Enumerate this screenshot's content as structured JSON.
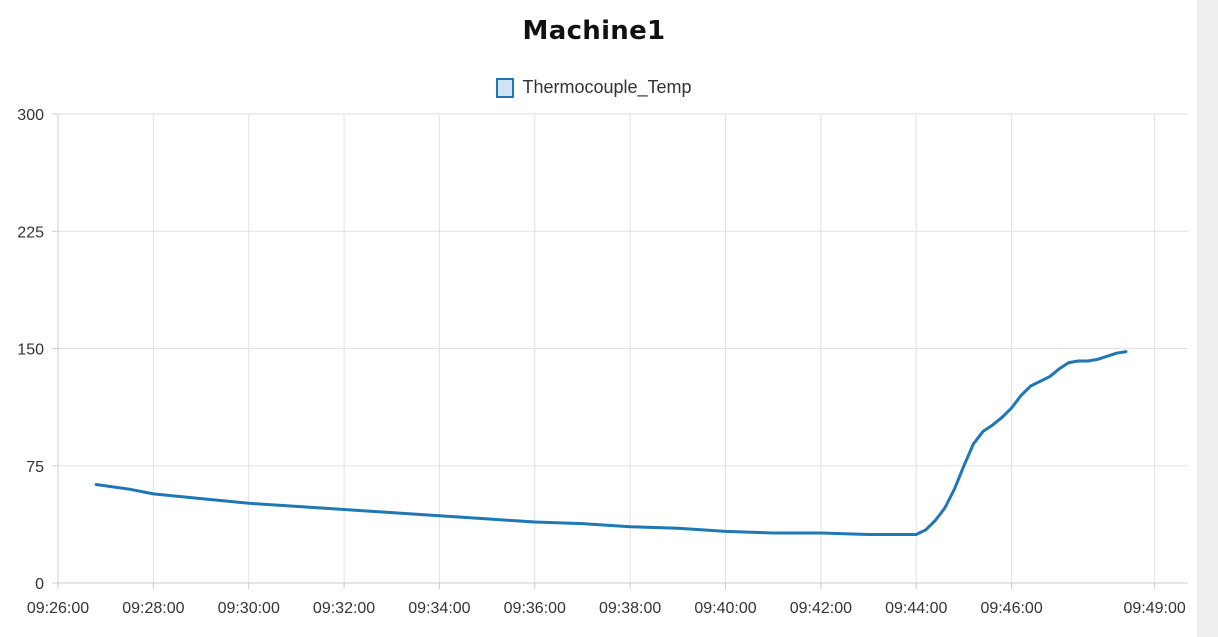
{
  "chart_data": {
    "type": "line",
    "title": "Machine1",
    "xlabel": "",
    "ylabel": "",
    "ylim": [
      0,
      300
    ],
    "yticks": [
      "0",
      "75",
      "150",
      "225",
      "300"
    ],
    "xticks": [
      "09:26:00",
      "09:28:00",
      "09:30:00",
      "09:32:00",
      "09:34:00",
      "09:36:00",
      "09:38:00",
      "09:40:00",
      "09:42:00",
      "09:44:00",
      "09:46:00",
      "09:49:00"
    ],
    "xtick_minutes": [
      566,
      568,
      570,
      572,
      574,
      576,
      578,
      580,
      582,
      584,
      586,
      589
    ],
    "xlim_minutes": [
      566,
      589.7
    ],
    "grid": true,
    "legend_position": "top-center",
    "series": [
      {
        "name": "Thermocouple_Temp",
        "color": "#1f77b4",
        "x": [
          "09:26:48",
          "09:27:30",
          "09:28:00",
          "09:29:00",
          "09:30:00",
          "09:31:00",
          "09:32:00",
          "09:33:00",
          "09:34:00",
          "09:35:00",
          "09:36:00",
          "09:37:00",
          "09:38:00",
          "09:39:00",
          "09:40:00",
          "09:41:00",
          "09:42:00",
          "09:43:00",
          "09:44:00",
          "09:44:12",
          "09:44:24",
          "09:44:36",
          "09:44:48",
          "09:45:00",
          "09:45:12",
          "09:45:24",
          "09:45:36",
          "09:45:48",
          "09:46:00",
          "09:46:12",
          "09:46:24",
          "09:46:36",
          "09:46:48",
          "09:47:00",
          "09:47:12",
          "09:47:24",
          "09:47:36",
          "09:47:48",
          "09:48:00",
          "09:48:12",
          "09:48:24"
        ],
        "values": [
          63,
          60,
          57,
          54,
          51,
          49,
          47,
          45,
          43,
          41,
          39,
          38,
          36,
          35,
          33,
          32,
          32,
          31,
          31,
          34,
          40,
          48,
          60,
          75,
          89,
          97,
          101,
          106,
          112,
          120,
          126,
          129,
          132,
          137,
          141,
          142,
          142,
          143,
          145,
          147,
          148
        ]
      }
    ]
  }
}
